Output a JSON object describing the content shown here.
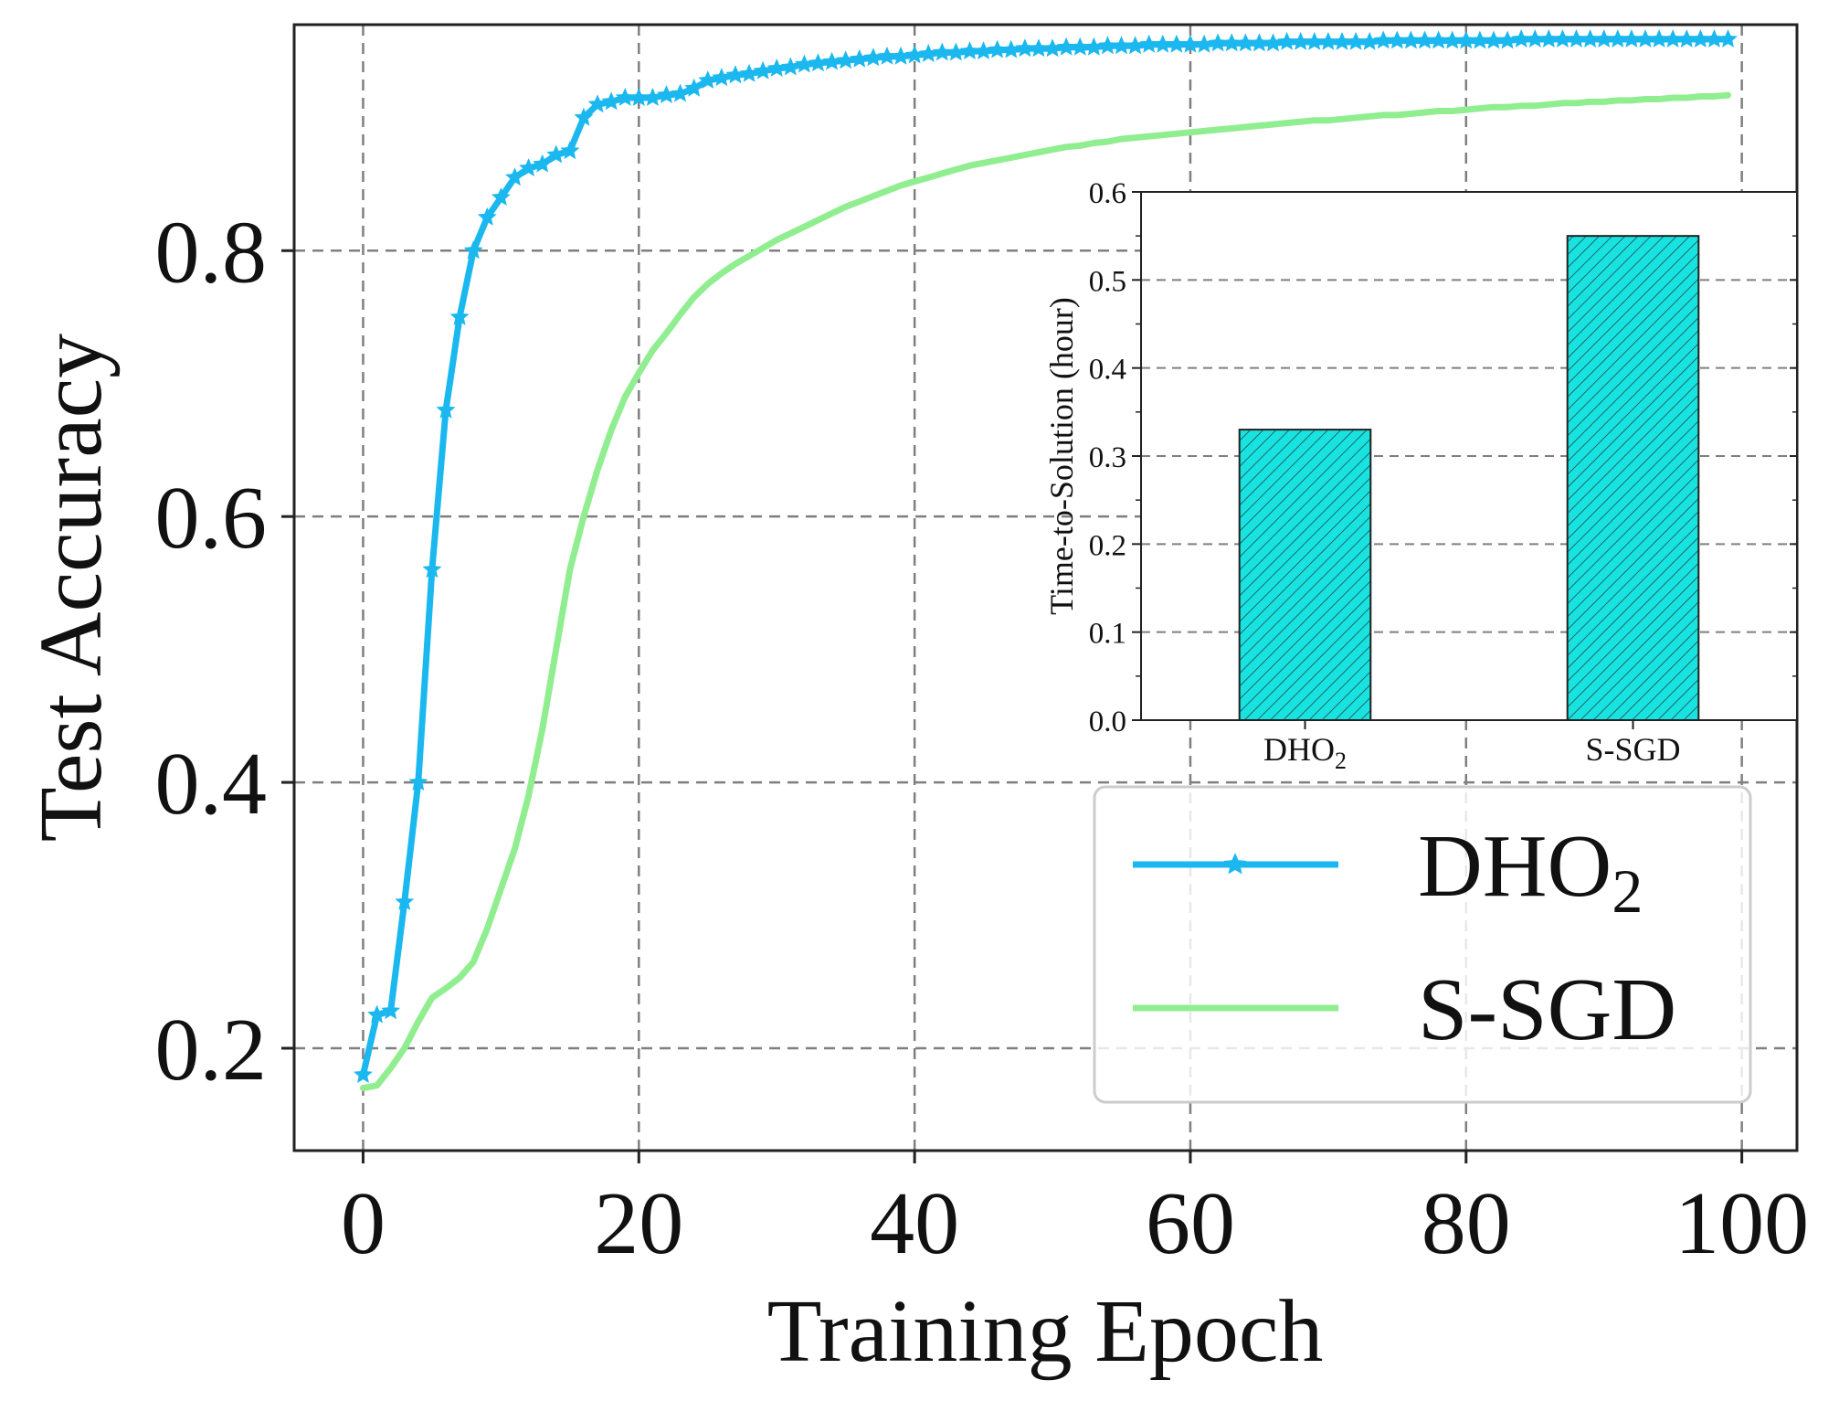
{
  "colors": {
    "dho2": "#1BB8F0",
    "ssgd": "#90EE90",
    "bar_fill": "#19E3E0",
    "bar_hatch": "#1a4a4a",
    "grid": "#7f7f7f",
    "axis": "#222222"
  },
  "chart_data": [
    {
      "type": "line",
      "title": "",
      "xlabel": "Training Epoch",
      "ylabel": "Test Accuracy",
      "xlim": [
        -5,
        104
      ],
      "ylim": [
        0.123,
        0.97
      ],
      "xticks": [
        0,
        20,
        40,
        60,
        80,
        100
      ],
      "yticks": [
        0.2,
        0.4,
        0.6,
        0.8
      ],
      "xtick_labels": [
        "0",
        "20",
        "40",
        "60",
        "80",
        "100"
      ],
      "ytick_labels": [
        "0.2",
        "0.4",
        "0.6",
        "0.8"
      ],
      "grid": true,
      "legend_position": "lower-right",
      "series": [
        {
          "name": "DHO2",
          "label_main": "DHO",
          "label_sub": "2",
          "marker": "star",
          "x_start": 0,
          "x_step": 1,
          "values": [
            0.18,
            0.225,
            0.228,
            0.31,
            0.4,
            0.56,
            0.68,
            0.75,
            0.8,
            0.825,
            0.84,
            0.855,
            0.862,
            0.865,
            0.872,
            0.875,
            0.9,
            0.91,
            0.912,
            0.915,
            0.915,
            0.915,
            0.917,
            0.918,
            0.922,
            0.928,
            0.93,
            0.932,
            0.933,
            0.935,
            0.937,
            0.938,
            0.94,
            0.941,
            0.942,
            0.943,
            0.944,
            0.945,
            0.946,
            0.946,
            0.947,
            0.948,
            0.949,
            0.949,
            0.95,
            0.95,
            0.951,
            0.951,
            0.952,
            0.952,
            0.952,
            0.953,
            0.953,
            0.953,
            0.954,
            0.954,
            0.954,
            0.955,
            0.955,
            0.955,
            0.955,
            0.955,
            0.956,
            0.956,
            0.956,
            0.956,
            0.956,
            0.957,
            0.957,
            0.957,
            0.957,
            0.957,
            0.957,
            0.957,
            0.958,
            0.958,
            0.958,
            0.958,
            0.958,
            0.958,
            0.958,
            0.958,
            0.958,
            0.958,
            0.959,
            0.959,
            0.959,
            0.959,
            0.959,
            0.959,
            0.959,
            0.959,
            0.959,
            0.959,
            0.959,
            0.959,
            0.959,
            0.959,
            0.959,
            0.959
          ]
        },
        {
          "name": "S-SGD",
          "label_main": "S-SGD",
          "label_sub": "",
          "marker": "none",
          "x_start": 0,
          "x_step": 1,
          "values": [
            0.17,
            0.172,
            0.185,
            0.2,
            0.22,
            0.238,
            0.245,
            0.253,
            0.265,
            0.29,
            0.32,
            0.35,
            0.39,
            0.44,
            0.5,
            0.56,
            0.6,
            0.635,
            0.665,
            0.69,
            0.708,
            0.725,
            0.738,
            0.752,
            0.765,
            0.775,
            0.783,
            0.79,
            0.796,
            0.802,
            0.808,
            0.813,
            0.818,
            0.823,
            0.828,
            0.833,
            0.837,
            0.841,
            0.845,
            0.849,
            0.852,
            0.855,
            0.858,
            0.861,
            0.864,
            0.866,
            0.868,
            0.87,
            0.872,
            0.874,
            0.876,
            0.878,
            0.879,
            0.881,
            0.882,
            0.884,
            0.885,
            0.886,
            0.887,
            0.888,
            0.889,
            0.89,
            0.891,
            0.892,
            0.893,
            0.894,
            0.895,
            0.896,
            0.897,
            0.898,
            0.898,
            0.899,
            0.9,
            0.901,
            0.902,
            0.902,
            0.903,
            0.904,
            0.905,
            0.905,
            0.906,
            0.907,
            0.908,
            0.908,
            0.909,
            0.909,
            0.91,
            0.911,
            0.911,
            0.912,
            0.912,
            0.913,
            0.913,
            0.914,
            0.914,
            0.915,
            0.915,
            0.916,
            0.916,
            0.917
          ]
        }
      ]
    },
    {
      "type": "bar",
      "title": "",
      "xlabel": "",
      "ylabel": "Time-to-Solution (hour)",
      "ylim": [
        0,
        0.6
      ],
      "yticks": [
        0.0,
        0.1,
        0.2,
        0.3,
        0.4,
        0.5,
        0.6
      ],
      "ytick_labels": [
        "0.0",
        "0.1",
        "0.2",
        "0.3",
        "0.4",
        "0.5",
        "0.6"
      ],
      "categories": [
        "DHO2",
        "S-SGD"
      ],
      "category_labels": [
        {
          "main": "DHO",
          "sub": "2"
        },
        {
          "main": "S-SGD",
          "sub": ""
        }
      ],
      "values": [
        0.33,
        0.55
      ],
      "hatch": "diagonal"
    }
  ]
}
